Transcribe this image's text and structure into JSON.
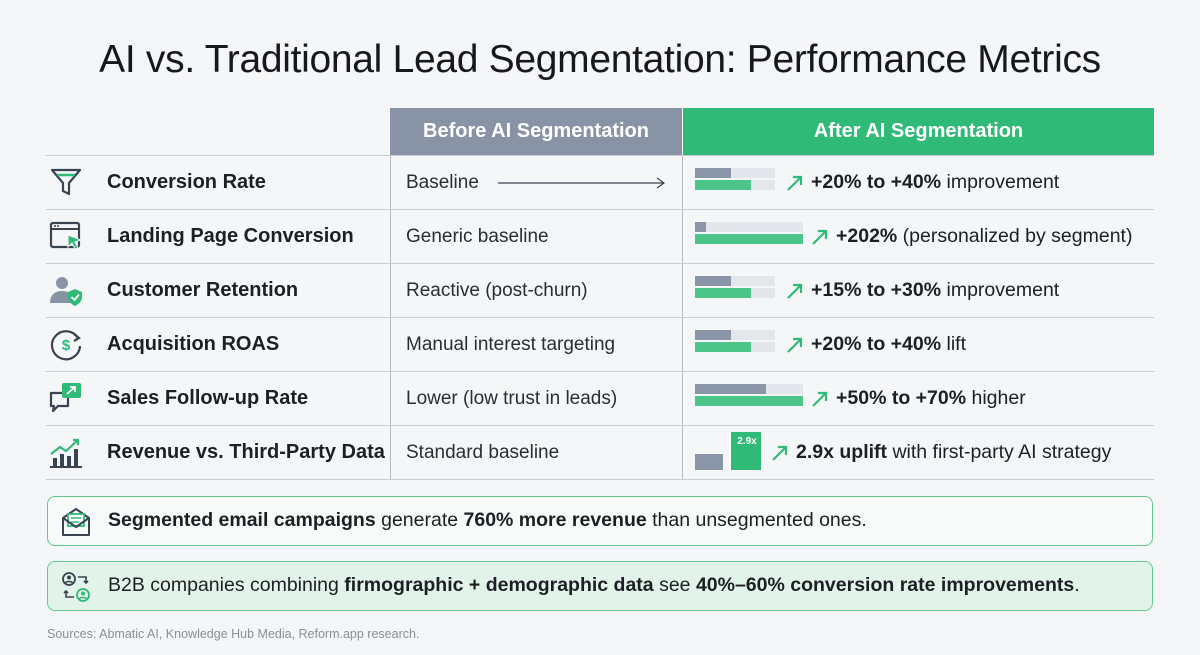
{
  "title": "AI vs. Traditional Lead Segmentation: Performance Metrics",
  "headers": {
    "before": "Before AI Segmentation",
    "after": "After AI Segmentation"
  },
  "rows": [
    {
      "metric": "Conversion Rate",
      "icon": "funnel-icon",
      "before": "Baseline",
      "result_bold": "+20% to +40%",
      "result_rest": " improvement",
      "bar_before": 0.45,
      "bar_after": 0.7
    },
    {
      "metric": "Landing Page Conversion",
      "icon": "browser-cursor-icon",
      "before": "Generic baseline",
      "result_bold": "+202%",
      "result_rest": " (personalized by segment)",
      "bar_before": 0.1,
      "bar_after": 1.0
    },
    {
      "metric": "Customer Retention",
      "icon": "user-shield-icon",
      "before": "Reactive (post-churn)",
      "result_bold": "+15% to +30%",
      "result_rest": " improvement",
      "bar_before": 0.45,
      "bar_after": 0.7
    },
    {
      "metric": "Acquisition ROAS",
      "icon": "dollar-cycle-icon",
      "before": "Manual interest targeting",
      "result_bold": "+20% to +40%",
      "result_rest": " lift",
      "bar_before": 0.45,
      "bar_after": 0.7
    },
    {
      "metric": "Sales Follow-up Rate",
      "icon": "chat-arrow-icon",
      "before": "Lower (low trust in leads)",
      "result_bold": "+50% to +70%",
      "result_rest": " higher",
      "bar_before": 0.66,
      "bar_after": 1.0
    },
    {
      "metric": "Revenue vs. Third-Party Data",
      "icon": "growth-chart-icon",
      "before": "Standard baseline",
      "result_bold": "2.9x uplift",
      "result_rest": " with first-party AI strategy",
      "mini_label": "2.9x"
    }
  ],
  "callouts": [
    {
      "icon": "email-icon",
      "bold1": "Segmented email campaigns",
      "text1": " generate ",
      "bold2": "760% more revenue",
      "text2": " than unsegmented ones."
    },
    {
      "icon": "user-exchange-icon",
      "text0": "B2B companies combining ",
      "bold1": "firmographic + demographic data",
      "text1": " see ",
      "bold2": "40%–60% conversion rate improvements",
      "text2": "."
    }
  ],
  "sources": "Sources: Abmatic AI, Knowledge Hub Media, Reform.app research.",
  "colors": {
    "grey_header": "#8894a6",
    "green_header": "#2fba77",
    "bar_grey": "#8a96a8",
    "bar_green": "#4cc48a",
    "icon_green": "#2fba77"
  }
}
